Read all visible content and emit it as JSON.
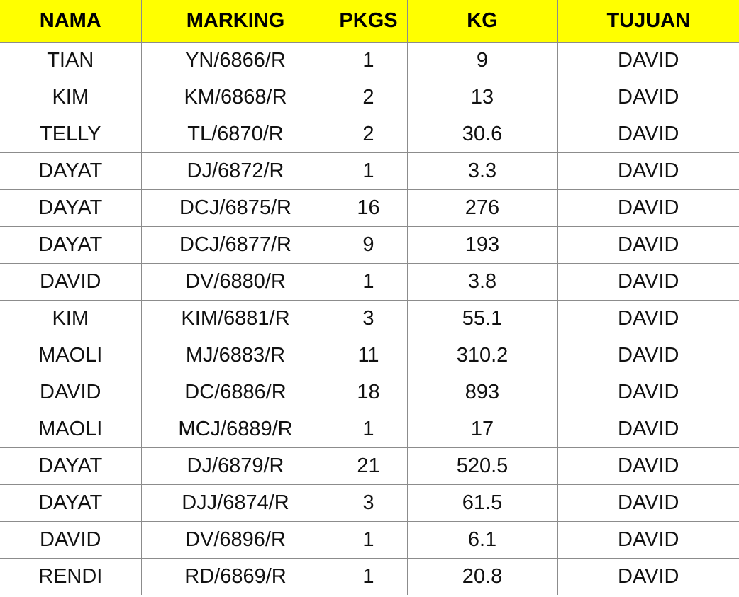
{
  "colors": {
    "header_fill": "#ffff00",
    "gridline": "#8c8c8c",
    "text": "#111111"
  },
  "table": {
    "columns": [
      "NAMA",
      "MARKING",
      "PKGS",
      "KG",
      "TUJUAN"
    ],
    "rows": [
      [
        "TIAN",
        "YN/6866/R",
        "1",
        "9",
        "DAVID"
      ],
      [
        "KIM",
        "KM/6868/R",
        "2",
        "13",
        "DAVID"
      ],
      [
        "TELLY",
        "TL/6870/R",
        "2",
        "30.6",
        "DAVID"
      ],
      [
        "DAYAT",
        "DJ/6872/R",
        "1",
        "3.3",
        "DAVID"
      ],
      [
        "DAYAT",
        "DCJ/6875/R",
        "16",
        "276",
        "DAVID"
      ],
      [
        "DAYAT",
        "DCJ/6877/R",
        "9",
        "193",
        "DAVID"
      ],
      [
        "DAVID",
        "DV/6880/R",
        "1",
        "3.8",
        "DAVID"
      ],
      [
        "KIM",
        "KIM/6881/R",
        "3",
        "55.1",
        "DAVID"
      ],
      [
        "MAOLI",
        "MJ/6883/R",
        "11",
        "310.2",
        "DAVID"
      ],
      [
        "DAVID",
        "DC/6886/R",
        "18",
        "893",
        "DAVID"
      ],
      [
        "MAOLI",
        "MCJ/6889/R",
        "1",
        "17",
        "DAVID"
      ],
      [
        "DAYAT",
        "DJ/6879/R",
        "21",
        "520.5",
        "DAVID"
      ],
      [
        "DAYAT",
        "DJJ/6874/R",
        "3",
        "61.5",
        "DAVID"
      ],
      [
        "DAVID",
        "DV/6896/R",
        "1",
        "6.1",
        "DAVID"
      ],
      [
        "RENDI",
        "RD/6869/R",
        "1",
        "20.8",
        "DAVID"
      ]
    ]
  }
}
